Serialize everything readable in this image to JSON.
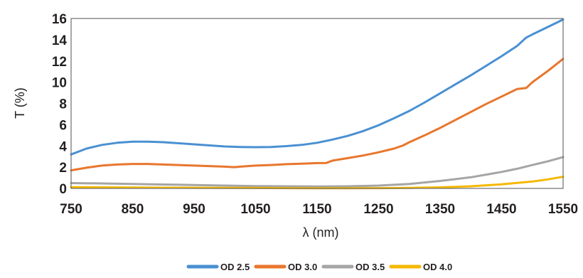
{
  "chart_data": {
    "type": "line",
    "xlabel": "λ (nm)",
    "ylabel": "T (%)",
    "xlim": [
      750,
      1550
    ],
    "ylim": [
      0,
      16
    ],
    "xticks": [
      750,
      850,
      950,
      1050,
      1150,
      1250,
      1350,
      1450,
      1550
    ],
    "yticks": [
      0,
      2,
      4,
      6,
      8,
      10,
      12,
      14,
      16
    ],
    "grid": false,
    "legend_position": "bottom",
    "series": [
      {
        "name": "OD 2.5",
        "color": "#4a90d2",
        "x": [
          750,
          775,
          800,
          825,
          850,
          875,
          900,
          925,
          950,
          975,
          1000,
          1025,
          1050,
          1075,
          1100,
          1125,
          1150,
          1175,
          1200,
          1225,
          1250,
          1275,
          1300,
          1325,
          1350,
          1375,
          1400,
          1425,
          1450,
          1475,
          1490,
          1500,
          1525,
          1550
        ],
        "values": [
          3.2,
          3.75,
          4.1,
          4.3,
          4.4,
          4.4,
          4.35,
          4.25,
          4.15,
          4.05,
          3.95,
          3.9,
          3.88,
          3.9,
          3.98,
          4.1,
          4.3,
          4.6,
          4.95,
          5.4,
          5.95,
          6.6,
          7.3,
          8.1,
          8.95,
          9.8,
          10.65,
          11.55,
          12.45,
          13.4,
          14.2,
          14.5,
          15.2,
          15.9
        ]
      },
      {
        "name": "OD 3.0",
        "color": "#e8762d",
        "x": [
          750,
          775,
          800,
          825,
          850,
          875,
          900,
          925,
          950,
          975,
          1000,
          1015,
          1025,
          1050,
          1075,
          1100,
          1125,
          1150,
          1165,
          1175,
          1200,
          1225,
          1250,
          1275,
          1290,
          1300,
          1325,
          1350,
          1375,
          1400,
          1425,
          1450,
          1475,
          1490,
          1500,
          1525,
          1550
        ],
        "values": [
          1.7,
          1.95,
          2.15,
          2.25,
          2.3,
          2.3,
          2.25,
          2.2,
          2.15,
          2.1,
          2.05,
          2.0,
          2.05,
          2.15,
          2.2,
          2.28,
          2.33,
          2.38,
          2.4,
          2.62,
          2.85,
          3.1,
          3.4,
          3.75,
          4.05,
          4.35,
          5.0,
          5.7,
          6.45,
          7.2,
          7.95,
          8.65,
          9.35,
          9.45,
          10.0,
          11.05,
          12.2
        ]
      },
      {
        "name": "OD 3.5",
        "color": "#a5a5a5",
        "x": [
          750,
          800,
          850,
          900,
          950,
          1000,
          1050,
          1100,
          1150,
          1200,
          1250,
          1300,
          1350,
          1400,
          1425,
          1450,
          1475,
          1500,
          1525,
          1550
        ],
        "values": [
          0.5,
          0.47,
          0.42,
          0.37,
          0.32,
          0.27,
          0.22,
          0.2,
          0.18,
          0.2,
          0.27,
          0.42,
          0.7,
          1.05,
          1.3,
          1.55,
          1.85,
          2.2,
          2.55,
          2.95
        ]
      },
      {
        "name": "OD 4.0",
        "color": "#f5b800",
        "x": [
          750,
          800,
          850,
          900,
          950,
          1000,
          1050,
          1100,
          1150,
          1200,
          1250,
          1300,
          1350,
          1400,
          1450,
          1500,
          1525,
          1550
        ],
        "values": [
          0.12,
          0.1,
          0.08,
          0.07,
          0.06,
          0.05,
          0.04,
          0.03,
          0.02,
          0.02,
          0.03,
          0.05,
          0.1,
          0.2,
          0.38,
          0.65,
          0.85,
          1.1
        ]
      }
    ]
  }
}
